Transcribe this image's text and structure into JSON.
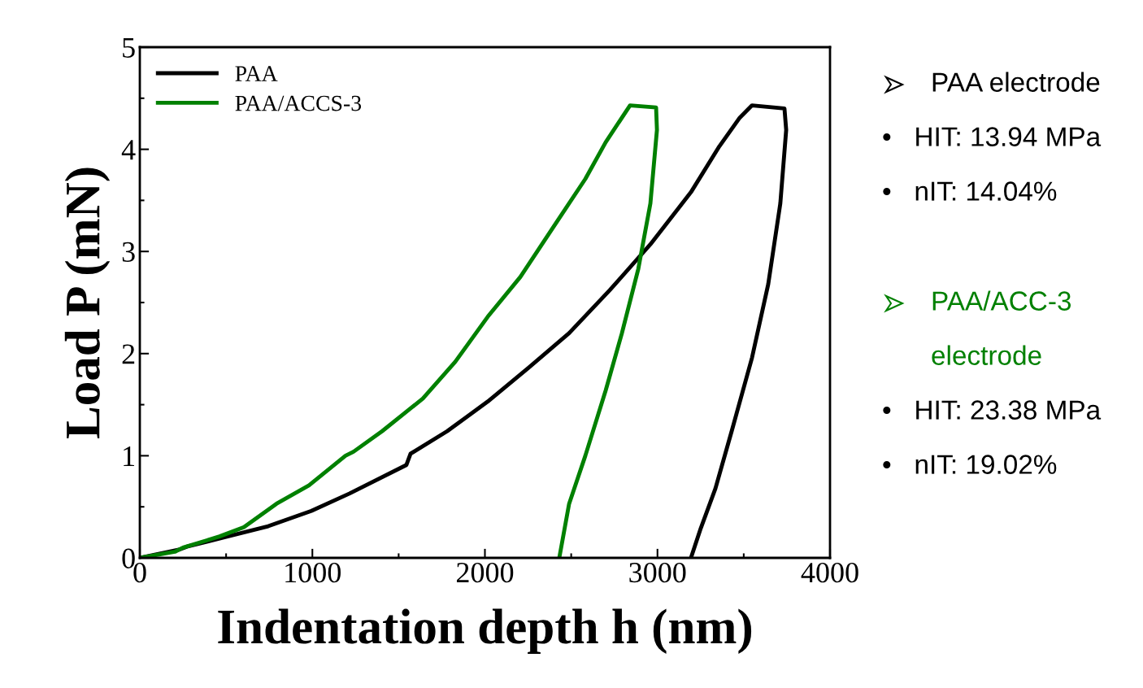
{
  "chart_data": {
    "type": "line",
    "xlabel": "Indentation depth h (nm)",
    "ylabel": "Load P (mN)",
    "xlim": [
      0,
      4000
    ],
    "xticks": [
      0,
      1000,
      2000,
      3000,
      4000
    ],
    "ylim": [
      0,
      5
    ],
    "yticks": [
      0,
      1,
      2,
      3,
      4,
      5
    ],
    "legend": "top left",
    "grid": false,
    "marker": "none",
    "line_style": "solid",
    "series": [
      {
        "name": "PAA",
        "color": "#000000",
        "x": [
          0,
          226,
          273,
          509,
          744,
          994,
          1215,
          1545,
          1569,
          1781,
          2016,
          2252,
          2488,
          2723,
          2959,
          3194,
          3359,
          3477,
          3548,
          3736,
          3746,
          3712,
          3642,
          3548,
          3430,
          3336,
          3251,
          3194
        ],
        "values": [
          0,
          0.08,
          0.11,
          0.21,
          0.31,
          0.46,
          0.63,
          0.91,
          1.02,
          1.24,
          1.53,
          1.86,
          2.2,
          2.62,
          3.07,
          3.58,
          4.03,
          4.31,
          4.43,
          4.4,
          4.19,
          3.47,
          2.68,
          1.96,
          1.24,
          0.68,
          0.29,
          0
        ]
      },
      {
        "name": "PAA/ACCS-3",
        "color": "#008000",
        "x": [
          0,
          203,
          250,
          462,
          603,
          792,
          980,
          1192,
          1239,
          1404,
          1640,
          1828,
          2016,
          2205,
          2393,
          2582,
          2700,
          2841,
          2992,
          2997,
          2959,
          2889,
          2794,
          2700,
          2582,
          2488,
          2431
        ],
        "values": [
          0,
          0.06,
          0.1,
          0.21,
          0.3,
          0.53,
          0.71,
          1.0,
          1.04,
          1.24,
          1.56,
          1.92,
          2.36,
          2.75,
          3.23,
          3.71,
          4.07,
          4.43,
          4.41,
          4.19,
          3.47,
          2.83,
          2.2,
          1.64,
          1.0,
          0.53,
          0
        ]
      }
    ],
    "annotations": [
      "PAA electrode",
      "•   HIT: 13.94 MPa",
      "•   nIT: 14.04%",
      "PAA/ACC-3",
      "electrode",
      "•   HIT: 23.38 MPa",
      "•   nIT: 19.02%"
    ]
  }
}
